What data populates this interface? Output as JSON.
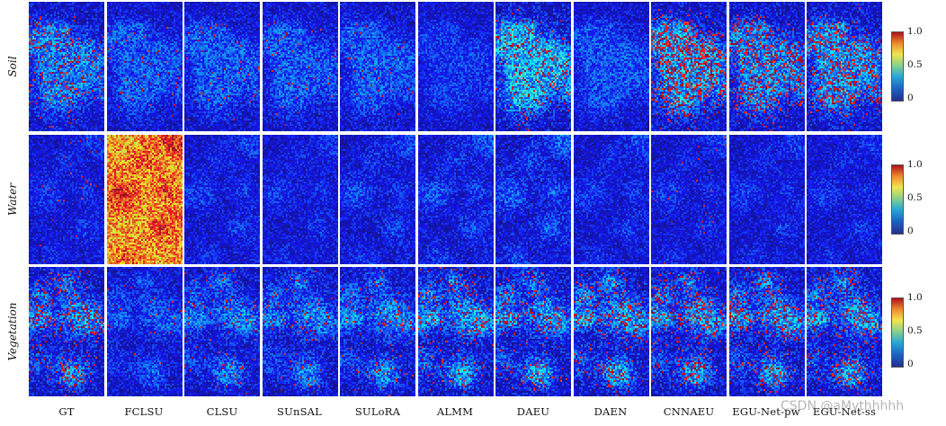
{
  "rows": [
    {
      "label": "Soil"
    },
    {
      "label": "Water"
    },
    {
      "label": "Vegetation"
    }
  ],
  "columns": [
    {
      "label": "GT"
    },
    {
      "label": "FCLSU"
    },
    {
      "label": "CLSU"
    },
    {
      "label": "SUnSAL"
    },
    {
      "label": "SULoRA"
    },
    {
      "label": "ALMM"
    },
    {
      "label": "DAEU"
    },
    {
      "label": "DAEN"
    },
    {
      "label": "CNNAEU"
    },
    {
      "label": "EGU-Net-pw"
    },
    {
      "label": "EGU-Net-ss"
    }
  ],
  "colorbar": {
    "ticks": [
      "1.0",
      "0.5",
      "0"
    ],
    "colormap": "jet",
    "colors": [
      "#1f2e8f",
      "#1c63c3",
      "#24a7d8",
      "#8bd18a",
      "#f2e64a",
      "#f08a2c",
      "#b0101a"
    ]
  },
  "watermark": "CSDN @aMythhhhh"
}
